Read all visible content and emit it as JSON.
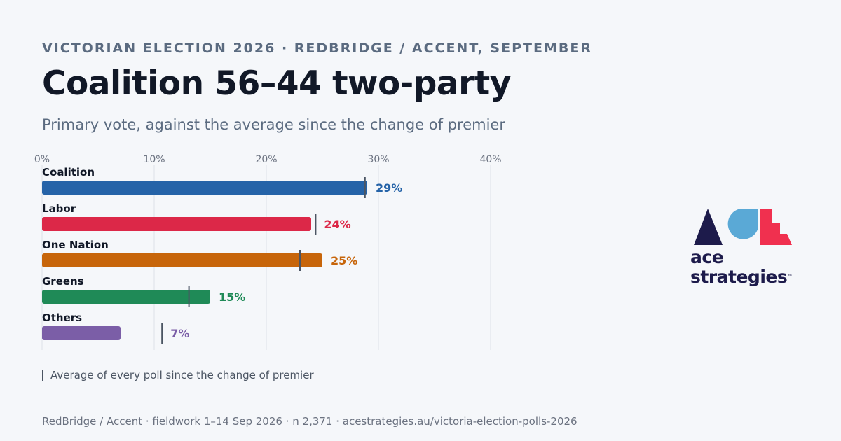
{
  "header": {
    "kicker": "VICTORIAN ELECTION 2026 · REDBRIDGE / ACCENT, SEPTEMBER",
    "title": "Coalition 56–44 two-party",
    "subtitle": "Primary vote, against the average since the change of premier"
  },
  "chart_data": {
    "type": "bar",
    "orientation": "horizontal",
    "xlim": [
      0,
      40
    ],
    "ticks": [
      "0%",
      "10%",
      "20%",
      "30%",
      "40%"
    ],
    "grid": true,
    "categories": [
      "Coalition",
      "Labor",
      "One Nation",
      "Greens",
      "Others"
    ],
    "values": [
      29,
      24,
      25,
      15,
      7
    ],
    "value_labels": [
      "29%",
      "24%",
      "25%",
      "15%",
      "7%"
    ],
    "averages": [
      28.8,
      24.4,
      23,
      13.1,
      10.7
    ],
    "colors": [
      "#2563a8",
      "#dc2848",
      "#c7650a",
      "#1f8a57",
      "#7b5ea7"
    ]
  },
  "legend": {
    "text": "Average of every poll since the change of premier"
  },
  "footer": {
    "source": "RedBridge / Accent · fieldwork 1–14 Sep 2026 · n 2,371 · acestrategies.au/victoria-election-polls-2026"
  },
  "logo": {
    "line1": "ace",
    "line2": "strategies",
    "mark": "™",
    "colors": [
      "#1d1b4b",
      "#5aa9d6",
      "#f0304f"
    ]
  }
}
